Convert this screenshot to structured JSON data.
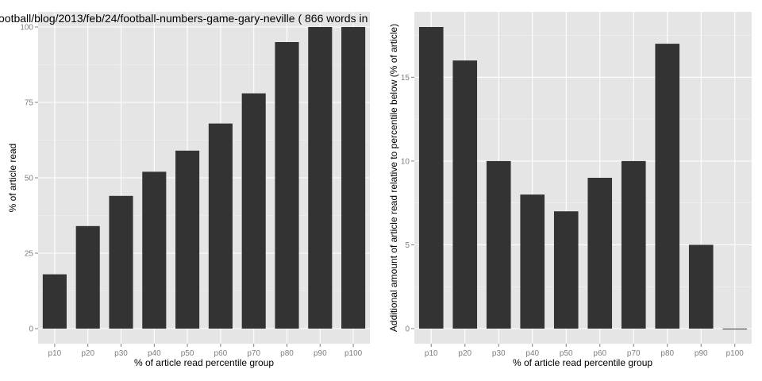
{
  "chart_data": [
    {
      "type": "bar",
      "title": "ootball/blog/2013/feb/24/football-numbers-game-gary-neville ( 866 words in",
      "xlabel": "% of article read percentile group",
      "ylabel": "% of article read",
      "categories": [
        "p10",
        "p20",
        "p30",
        "p40",
        "p50",
        "p60",
        "p70",
        "p80",
        "p90",
        "p100"
      ],
      "values": [
        18,
        34,
        44,
        52,
        59,
        68,
        78,
        95,
        100,
        100
      ],
      "ylim": [
        -5,
        105
      ],
      "yticks": [
        "0",
        "25",
        "50",
        "75",
        "100"
      ],
      "grid": true,
      "bar_color": "#333333",
      "panel_color": "#e5e5e5"
    },
    {
      "type": "bar",
      "title": "",
      "xlabel": "% of article read percentile group",
      "ylabel": "Additional amount of article read relative to percentile below (% of article)",
      "categories": [
        "p10",
        "p20",
        "p30",
        "p40",
        "p50",
        "p60",
        "p70",
        "p80",
        "p90",
        "p100"
      ],
      "values": [
        18,
        16,
        10,
        8,
        7,
        9,
        10,
        17,
        5,
        0
      ],
      "ylim": [
        -0.9,
        18.9
      ],
      "yticks": [
        "0",
        "5",
        "10",
        "15"
      ],
      "grid": true,
      "bar_color": "#333333",
      "panel_color": "#e5e5e5"
    }
  ]
}
